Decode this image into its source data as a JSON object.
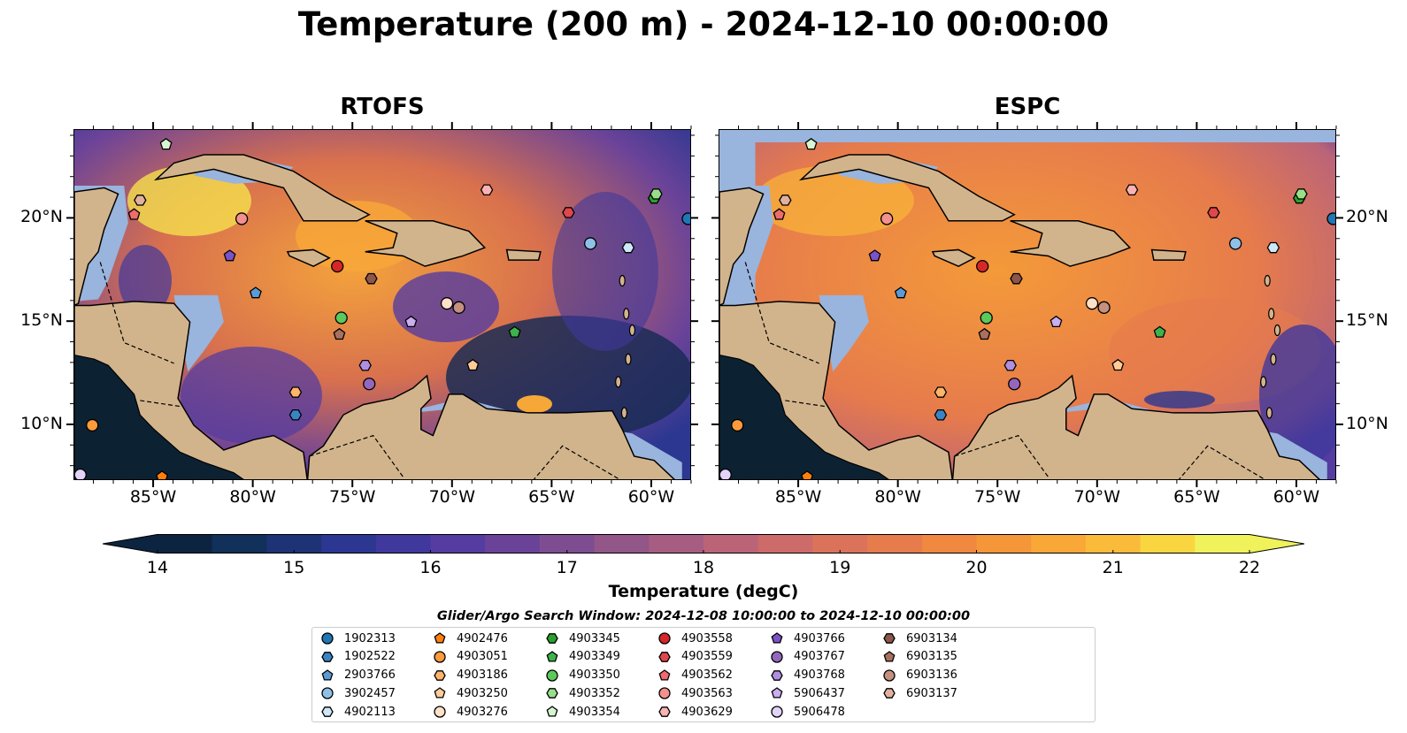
{
  "title": "Temperature (200 m) - 2024-12-10 00:00:00",
  "panels": [
    {
      "title": "RTOFS"
    },
    {
      "title": "ESPC"
    }
  ],
  "lon_ticks": [
    "85°W",
    "80°W",
    "75°W",
    "70°W",
    "65°W",
    "60°W"
  ],
  "lat_ticks": [
    "20°N",
    "15°N",
    "10°N"
  ],
  "extent": {
    "lon": [
      -89,
      -58
    ],
    "lat": [
      7.3,
      24.3
    ]
  },
  "colorbar": {
    "label": "Temperature (degC)",
    "min": 14,
    "max": 22,
    "step": 0.5,
    "ticks": [
      "14",
      "15",
      "16",
      "17",
      "18",
      "19",
      "20",
      "21",
      "22"
    ],
    "colors": [
      "#0c2440",
      "#11305a",
      "#1d3375",
      "#2b3790",
      "#40389c",
      "#553ca0",
      "#6a4399",
      "#7e4d91",
      "#925688",
      "#a75d82",
      "#bb6478",
      "#cc6b6a",
      "#db735b",
      "#e67b4c",
      "#f08840",
      "#f59638",
      "#f9a838",
      "#fbbb3a",
      "#f9d63f",
      "#eff25a"
    ]
  },
  "legend": {
    "title": "Glider/Argo Search Window: 2024-12-08 10:00:00 to 2024-12-10 00:00:00",
    "items": [
      {
        "id": "1902313",
        "marker": "circle",
        "color": "#1f77b4"
      },
      {
        "id": "1902522",
        "marker": "hexagon",
        "color": "#3b84c4"
      },
      {
        "id": "2903766",
        "marker": "pentagon",
        "color": "#5b9bd5"
      },
      {
        "id": "3902457",
        "marker": "circle",
        "color": "#8ec0e8"
      },
      {
        "id": "4902113",
        "marker": "hexagon",
        "color": "#cfe8f8"
      },
      {
        "id": "4902476",
        "marker": "pentagon",
        "color": "#ff7f0e"
      },
      {
        "id": "4903051",
        "marker": "circle",
        "color": "#ff9a3c"
      },
      {
        "id": "4903186",
        "marker": "hexagon",
        "color": "#ffb46b"
      },
      {
        "id": "4903250",
        "marker": "pentagon",
        "color": "#ffcc99"
      },
      {
        "id": "4903276",
        "marker": "circle",
        "color": "#ffe0c8"
      },
      {
        "id": "4903345",
        "marker": "hexagon",
        "color": "#2ca02c"
      },
      {
        "id": "4903349",
        "marker": "pentagon",
        "color": "#3cb44b"
      },
      {
        "id": "4903350",
        "marker": "circle",
        "color": "#5cc95c"
      },
      {
        "id": "4903352",
        "marker": "hexagon",
        "color": "#98df8a"
      },
      {
        "id": "4903354",
        "marker": "pentagon",
        "color": "#d6f5d0"
      },
      {
        "id": "4903558",
        "marker": "circle",
        "color": "#d62728"
      },
      {
        "id": "4903559",
        "marker": "hexagon",
        "color": "#e0474c"
      },
      {
        "id": "4903562",
        "marker": "pentagon",
        "color": "#ee6b6e"
      },
      {
        "id": "4903563",
        "marker": "circle",
        "color": "#f4908f"
      },
      {
        "id": "4903629",
        "marker": "hexagon",
        "color": "#fab3b3"
      },
      {
        "id": "4903766",
        "marker": "pentagon",
        "color": "#7b52c7"
      },
      {
        "id": "4903767",
        "marker": "circle",
        "color": "#9467bd"
      },
      {
        "id": "4903768",
        "marker": "hexagon",
        "color": "#b08ee0"
      },
      {
        "id": "5906437",
        "marker": "pentagon",
        "color": "#c9aef0"
      },
      {
        "id": "5906478",
        "marker": "circle",
        "color": "#e3d2fa"
      },
      {
        "id": "6903134",
        "marker": "hexagon",
        "color": "#8c564b"
      },
      {
        "id": "6903135",
        "marker": "pentagon",
        "color": "#a8705f"
      },
      {
        "id": "6903136",
        "marker": "circle",
        "color": "#c49080"
      },
      {
        "id": "6903137",
        "marker": "hexagon",
        "color": "#e0b0a0"
      }
    ]
  },
  "stations": [
    {
      "id": "1902313",
      "lon": -58.2,
      "lat": 20.0
    },
    {
      "id": "2903766",
      "lon": -79.9,
      "lat": 16.4
    },
    {
      "id": "3902457",
      "lon": -63.1,
      "lat": 18.8
    },
    {
      "id": "4902113",
      "lon": -61.2,
      "lat": 18.6
    },
    {
      "id": "4902476",
      "lon": -84.6,
      "lat": 7.5
    },
    {
      "id": "4903051",
      "lon": -88.1,
      "lat": 10.0
    },
    {
      "id": "4903250",
      "lon": -69.0,
      "lat": 12.9
    },
    {
      "id": "4903276",
      "lon": -70.3,
      "lat": 15.9
    },
    {
      "id": "4903345",
      "lon": -59.9,
      "lat": 21.0
    },
    {
      "id": "4903349",
      "lon": -66.9,
      "lat": 14.5
    },
    {
      "id": "4903350",
      "lon": -75.6,
      "lat": 15.2
    },
    {
      "id": "4903352",
      "lon": -59.8,
      "lat": 21.2
    },
    {
      "id": "4903354",
      "lon": -84.4,
      "lat": 23.6
    },
    {
      "id": "4903558",
      "lon": -75.8,
      "lat": 17.7
    },
    {
      "id": "4903562",
      "lon": -86.0,
      "lat": 20.2
    },
    {
      "id": "4903563",
      "lon": -80.6,
      "lat": 20.0
    },
    {
      "id": "4903629",
      "lon": -68.3,
      "lat": 21.4
    },
    {
      "id": "4903766",
      "lon": -81.2,
      "lat": 18.2
    },
    {
      "id": "4903767",
      "lon": -74.2,
      "lat": 12.0
    },
    {
      "id": "4903768",
      "lon": -74.4,
      "lat": 12.9
    },
    {
      "id": "5906437",
      "lon": -72.1,
      "lat": 15.0
    },
    {
      "id": "5906478",
      "lon": -88.7,
      "lat": 7.6
    },
    {
      "id": "6903134",
      "lon": -74.1,
      "lat": 17.1
    },
    {
      "id": "6903135",
      "lon": -75.7,
      "lat": 14.4
    },
    {
      "id": "6903136",
      "lon": -69.7,
      "lat": 15.7
    },
    {
      "id": "6903137",
      "lon": -85.7,
      "lat": 20.9
    },
    {
      "id": "1902522",
      "lon": -77.9,
      "lat": 10.5
    },
    {
      "id": "4903186",
      "lon": -77.9,
      "lat": 11.6
    },
    {
      "id": "4903559",
      "lon": -64.2,
      "lat": 20.3
    }
  ]
}
